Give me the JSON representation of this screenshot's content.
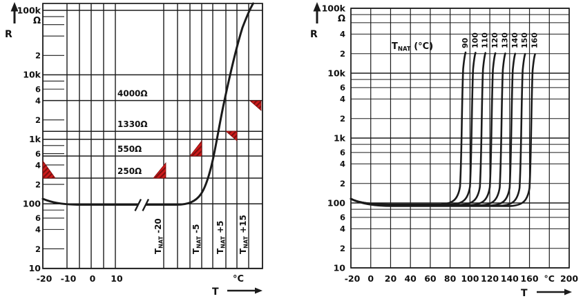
{
  "page": {
    "background": "#ffffff",
    "colors": {
      "line": "#1b1b1b",
      "text": "#111111",
      "red": "#cf1b1b",
      "red_dark": "#7e0f0f"
    }
  },
  "chart_data": [
    {
      "id": "left-chart",
      "type": "line",
      "title": "PTC resistance vs temperature with tolerance limits",
      "ylabel": "R",
      "y_unit": "Ω",
      "xlabel": "T",
      "x_unit": "°C",
      "y_scale": "log",
      "ylim": [
        10,
        100000
      ],
      "y_tick_labels": [
        "100k",
        "Ω",
        "2",
        "10k",
        "6",
        "4",
        "2",
        "1k",
        "6",
        "4",
        "2",
        "100",
        "6",
        "4",
        "2",
        "10"
      ],
      "y_tick_values": [
        100000,
        null,
        20000,
        10000,
        6000,
        4000,
        2000,
        1000,
        600,
        400,
        200,
        100,
        60,
        40,
        20,
        10
      ],
      "x_tick_labels": [
        "-20",
        "-10",
        "0",
        "10"
      ],
      "x_axis_broken": true,
      "threshold_lines": [
        {
          "label": "4000Ω",
          "ohms": 4000
        },
        {
          "label": "1330Ω",
          "ohms": 1330
        },
        {
          "label": "550Ω",
          "ohms": 550
        },
        {
          "label": "250Ω",
          "ohms": 250
        }
      ],
      "tnat_gridlines": [
        {
          "base": "T",
          "sub": "NAT",
          "offset": " -20"
        },
        {
          "base": "T",
          "sub": "NAT",
          "offset": " -5"
        },
        {
          "base": "T",
          "sub": "NAT",
          "offset": " +5"
        },
        {
          "base": "T",
          "sub": "NAT",
          "offset": " +15"
        }
      ],
      "curve_points": [
        {
          "T": "-20 °C",
          "R_ohm": 115
        },
        {
          "T": "0 °C",
          "R_ohm": 97
        },
        {
          "T": "10 °C",
          "R_ohm": 96
        },
        {
          "T": "T_NAT -20",
          "R_ohm": 100
        },
        {
          "T": "T_NAT -10",
          "R_ohm": 160
        },
        {
          "T": "T_NAT -5",
          "R_ohm": 400
        },
        {
          "T": "T_NAT",
          "R_ohm": 1500
        },
        {
          "T": "T_NAT +5",
          "R_ohm": 4000
        },
        {
          "T": "T_NAT +10",
          "R_ohm": 12000
        },
        {
          "T": "T_NAT +20",
          "R_ohm": 100000
        }
      ],
      "tolerance_marks": [
        {
          "position": "left edge (-20 °C)",
          "ohms": 250
        },
        {
          "position": "T_NAT -20",
          "ohms": 250
        },
        {
          "position": "T_NAT -5",
          "ohms": 550
        },
        {
          "position": "T_NAT +5",
          "ohms": 1330
        },
        {
          "position": "T_NAT +15",
          "ohms": 4000
        }
      ]
    },
    {
      "id": "right-chart",
      "type": "line",
      "title": "PTC characteristic family for rated temperatures 90–160 °C",
      "ylabel": "R",
      "y_unit": "Ω",
      "xlabel": "T",
      "x_unit": "°C",
      "y_scale": "log",
      "ylim": [
        10,
        100000
      ],
      "xlim": [
        -20,
        200
      ],
      "y_tick_labels": [
        "100k",
        "Ω",
        "4",
        "2",
        "10k",
        "6",
        "4",
        "2",
        "1k",
        "6",
        "4",
        "2",
        "100",
        "6",
        "4",
        "2",
        "10"
      ],
      "y_tick_values": [
        100000,
        null,
        40000,
        20000,
        10000,
        6000,
        4000,
        2000,
        1000,
        600,
        400,
        200,
        100,
        60,
        40,
        20,
        10
      ],
      "x_tick_labels": [
        "-20",
        "0",
        "20",
        "40",
        "60",
        "80",
        "100",
        "120",
        "140",
        "160",
        "°C",
        "200"
      ],
      "family_label": {
        "base": "T",
        "sub": "NAT",
        "rest": " (°C)"
      },
      "series": [
        {
          "name": "90",
          "t_nat_c": 90
        },
        {
          "name": "100",
          "t_nat_c": 100
        },
        {
          "name": "110",
          "t_nat_c": 110
        },
        {
          "name": "120",
          "t_nat_c": 120
        },
        {
          "name": "130",
          "t_nat_c": 130
        },
        {
          "name": "140",
          "t_nat_c": 140
        },
        {
          "name": "150",
          "t_nat_c": 150
        },
        {
          "name": "160",
          "t_nat_c": 160
        }
      ],
      "series_shape": {
        "r_min_ohm": 95,
        "r_at_curve_top_ohm": 20000
      }
    }
  ]
}
